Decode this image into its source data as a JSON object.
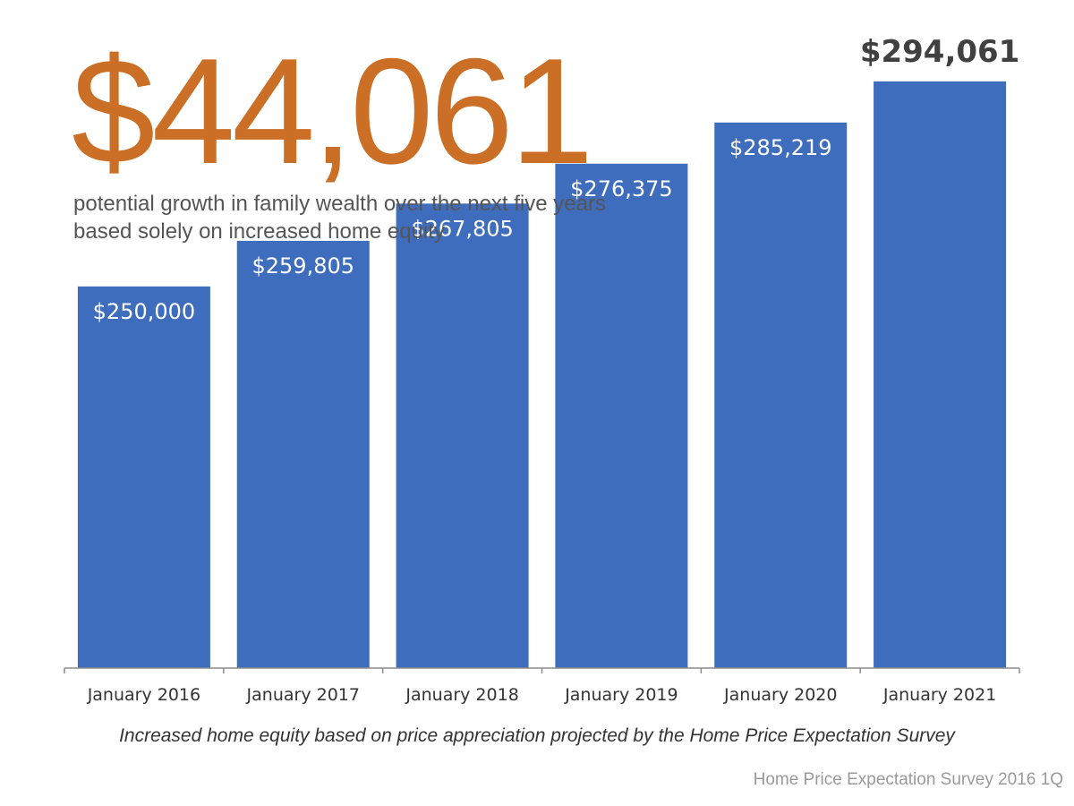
{
  "headline": {
    "value": "$44,061",
    "subtitle": "potential growth in family wealth over the next five years based solely on increased home equity"
  },
  "footnote": "Increased home equity based on price appreciation projected by the Home Price Expectation Survey",
  "source": "Home Price Expectation Survey 2016 1Q",
  "colors": {
    "bar": "#3f6dbd",
    "headline": "#cc6f26",
    "top_label": "#404040",
    "inner_label": "#ffffff",
    "axis": "#8c8c8c"
  },
  "chart_data": {
    "type": "bar",
    "categories": [
      "January 2016",
      "January 2017",
      "January 2018",
      "January 2019",
      "January 2020",
      "January 2021"
    ],
    "values": [
      250000,
      259805,
      267805,
      276375,
      285219,
      294061
    ],
    "labels": [
      "$250,000",
      "$259,805",
      "$267,805",
      "$276,375",
      "$285,219",
      "$294,061"
    ],
    "title": "",
    "xlabel": "",
    "ylabel": "",
    "ylim": [
      168000,
      300000
    ],
    "grid": false,
    "legend": "none"
  }
}
